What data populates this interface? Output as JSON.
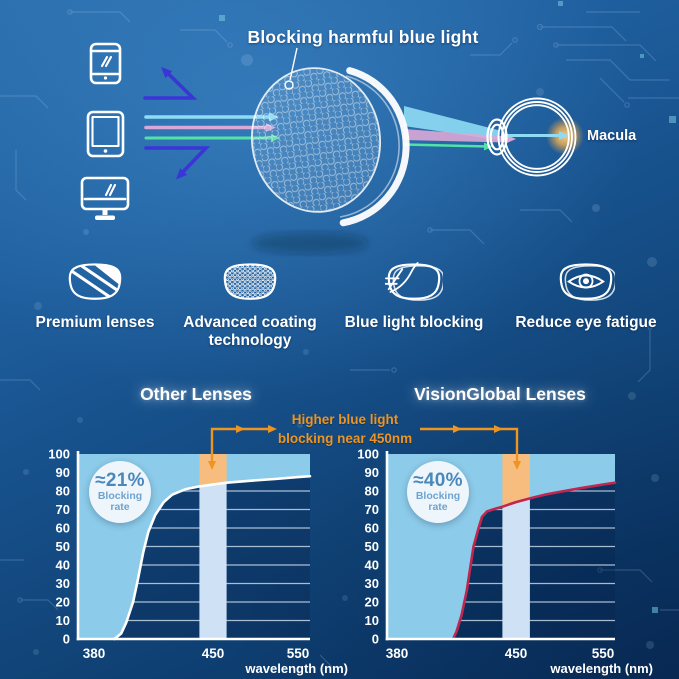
{
  "hero": {
    "title": "Blocking harmful blue light",
    "macula_label": "Macula",
    "device_icons": [
      "smartphone-icon",
      "tablet-icon",
      "monitor-icon"
    ],
    "lens_icon": "honeycomb-coated-lens",
    "eye_icon": "eyeball-diagram"
  },
  "colors": {
    "blocked_ray": "#3b35d8",
    "ray_cyan": "#8edcf4",
    "ray_pink": "#d9a8d6",
    "ray_green": "#52e2a6",
    "annotation_orange": "#ee9420",
    "macula_glow": "#ffb84d",
    "badge_text": "#4a88bb",
    "title_white": "#ffffff"
  },
  "features": [
    {
      "icon": "striped-lens-icon",
      "label": "Premium lenses"
    },
    {
      "icon": "mesh-lens-icon",
      "label": "Advanced coating technology"
    },
    {
      "icon": "deflect-lens-icon",
      "label": "Blue light blocking"
    },
    {
      "icon": "eye-lens-icon",
      "label": "Reduce eye fatigue"
    }
  ],
  "comparison": {
    "annotation": {
      "line1": "Higher blue light",
      "line2": "blocking near 450nm"
    }
  },
  "chart_data": [
    {
      "type": "area",
      "title": "Other Lenses",
      "badge": {
        "value": "≈21%",
        "line1": "Blocking",
        "line2": "rate"
      },
      "xlabel": "wavelength (nm)",
      "x_ticks": [
        380,
        450,
        550
      ],
      "y_ticks": [
        0,
        10,
        20,
        30,
        40,
        50,
        60,
        70,
        80,
        90,
        100
      ],
      "xlim": [
        370,
        566
      ],
      "ylim": [
        0,
        100
      ],
      "highlight_band_nm": [
        442,
        466
      ],
      "series": [
        {
          "name": "blocking rate (%)",
          "points": [
            [
              392,
              0
            ],
            [
              396,
              3
            ],
            [
              399,
              9
            ],
            [
              403,
              20
            ],
            [
              406,
              33
            ],
            [
              409,
              47
            ],
            [
              412,
              58
            ],
            [
              416,
              67
            ],
            [
              421,
              74
            ],
            [
              426,
              78
            ],
            [
              434,
              81
            ],
            [
              442,
              82.5
            ],
            [
              450,
              83.5
            ],
            [
              466,
              84.5
            ],
            [
              493,
              85.5
            ],
            [
              523,
              86.5
            ],
            [
              550,
              87.5
            ],
            [
              566,
              88
            ]
          ]
        }
      ],
      "colors": {
        "area": "#8ccbe9",
        "band": "#cfe2f5",
        "band_highlight": "#f7bd7e",
        "curve": "#ffffff",
        "grid": "rgba(222,236,250,0.75)",
        "axis": "#ffffff",
        "text": "#ffffff"
      }
    },
    {
      "type": "area",
      "title": "VisionGlobal Lenses",
      "badge": {
        "value": "≈40%",
        "line1": "Blocking",
        "line2": "rate"
      },
      "xlabel": "wavelength (nm)",
      "x_ticks": [
        380,
        450,
        550
      ],
      "y_ticks": [
        0,
        10,
        20,
        30,
        40,
        50,
        60,
        70,
        80,
        90,
        100
      ],
      "xlim": [
        373,
        565
      ],
      "ylim": [
        0,
        100
      ],
      "highlight_band_nm": [
        442,
        466
      ],
      "series": [
        {
          "name": "blocking rate (%)",
          "points": [
            [
              413,
              0
            ],
            [
              415,
              4
            ],
            [
              418,
              13
            ],
            [
              421,
              26
            ],
            [
              423,
              38
            ],
            [
              425,
              50
            ],
            [
              428,
              60
            ],
            [
              430,
              66
            ],
            [
              433,
              69
            ],
            [
              438,
              70.5
            ],
            [
              442,
              71.5
            ],
            [
              450,
              74
            ],
            [
              466,
              76
            ],
            [
              483,
              78
            ],
            [
              500,
              79.5
            ],
            [
              524,
              81.5
            ],
            [
              550,
              83.5
            ],
            [
              565,
              84.5
            ]
          ]
        }
      ],
      "colors": {
        "area": "#8ccbe9",
        "band": "#cfe2f5",
        "band_highlight": "#f7bd7e",
        "curve": "#bf2750",
        "grid": "rgba(222,236,250,0.75)",
        "axis": "#ffffff",
        "text": "#ffffff"
      }
    }
  ]
}
